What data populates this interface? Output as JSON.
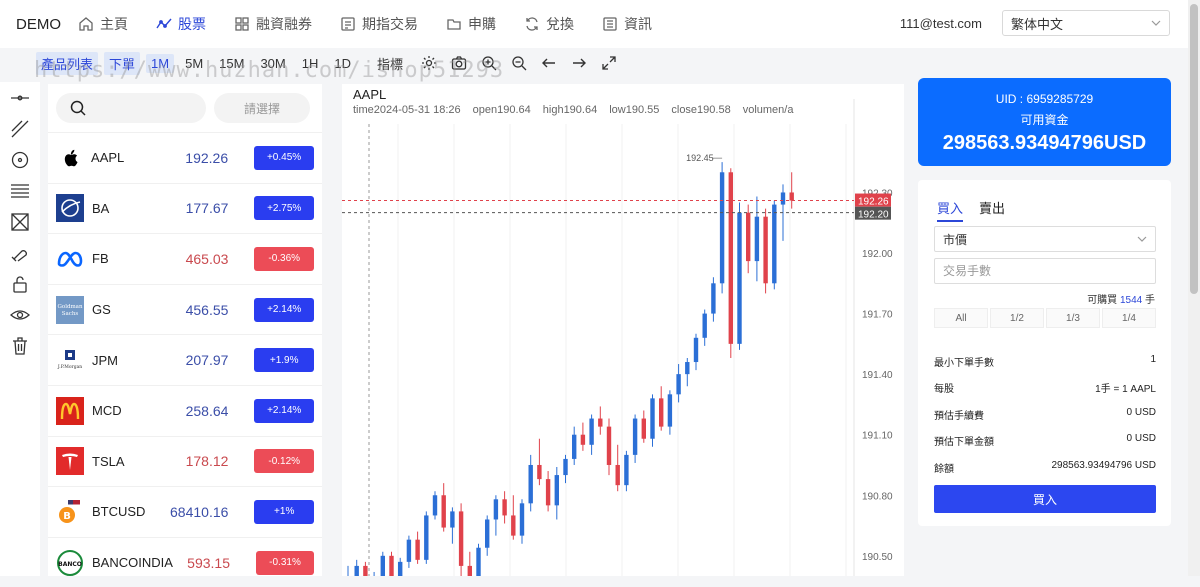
{
  "brand": "DEMO",
  "nav": [
    {
      "label": "主頁",
      "icon": "home-icon"
    },
    {
      "label": "股票",
      "icon": "chart-icon",
      "active": true
    },
    {
      "label": "融資融券",
      "icon": "grid-icon"
    },
    {
      "label": "期指交易",
      "icon": "document-icon"
    },
    {
      "label": "申購",
      "icon": "folder-icon"
    },
    {
      "label": "兌換",
      "icon": "refresh-icon"
    },
    {
      "label": "資訊",
      "icon": "news-icon"
    }
  ],
  "user": {
    "email": "111@test.com",
    "language": "繁体中文"
  },
  "toolbar": {
    "product_list": "產品列表",
    "order": "下單",
    "intervals": [
      "1M",
      "5M",
      "15M",
      "30M",
      "1H",
      "1D"
    ],
    "selected_interval": "1M",
    "indicators": "指標"
  },
  "watermark": "https://www.huzhan.com/ishop51293",
  "products_panel": {
    "search_placeholder": "",
    "select_label": "請選擇",
    "items": [
      {
        "symbol": "AAPL",
        "price": "192.26",
        "change": "+0.45%",
        "direction": "up",
        "logo": "apple-logo",
        "color": "#000000"
      },
      {
        "symbol": "BA",
        "price": "177.67",
        "change": "+2.75%",
        "direction": "up",
        "logo": "boeing-logo",
        "color": "#1d3f8f"
      },
      {
        "symbol": "FB",
        "price": "465.03",
        "change": "-0.36%",
        "direction": "down",
        "logo": "meta-logo",
        "color": "#0a66ff"
      },
      {
        "symbol": "GS",
        "price": "456.55",
        "change": "+2.14%",
        "direction": "up",
        "logo": "goldman-logo",
        "color": "#7399c6",
        "logo_text": "Goldman Sachs"
      },
      {
        "symbol": "JPM",
        "price": "207.97",
        "change": "+1.9%",
        "direction": "up",
        "logo": "jpmorgan-logo",
        "color": "#1b3a87",
        "logo_text": "J.P.Morgan"
      },
      {
        "symbol": "MCD",
        "price": "258.64",
        "change": "+2.14%",
        "direction": "up",
        "logo": "mcdonalds-logo",
        "color": "#d9231b"
      },
      {
        "symbol": "TSLA",
        "price": "178.12",
        "change": "-0.12%",
        "direction": "down",
        "logo": "tesla-logo",
        "color": "#e22b2b"
      },
      {
        "symbol": "BTCUSD",
        "price": "68410.16",
        "change": "+1%",
        "direction": "up",
        "logo": "bitcoin-logo",
        "color": "#f7931a"
      },
      {
        "symbol": "BANCOINDIA",
        "price": "593.15",
        "change": "-0.31%",
        "direction": "down",
        "logo": "bancoindia-logo",
        "color": "#1a8a3a",
        "logo_text": "BANCO"
      }
    ]
  },
  "chart": {
    "symbol": "AAPL",
    "info": {
      "time": "time2024-05-31 18:26",
      "open": "open190.64",
      "high": "high190.64",
      "low": "low190.55",
      "close": "close190.58",
      "volume": "volumen/a"
    },
    "price_axis": [
      "192.30",
      "192.00",
      "191.70",
      "191.40",
      "191.10",
      "190.80",
      "190.50"
    ],
    "last_price_tag": "192.26",
    "crosshair_price_tag": "192.20",
    "high_annotation": "192.45",
    "colors": {
      "up": "#2b6fd6",
      "down": "#e0424b"
    }
  },
  "chart_data": {
    "type": "candlestick",
    "ylim": [
      190.4,
      192.55
    ],
    "candles": [
      [
        190.35,
        190.45,
        190.33,
        190.4
      ],
      [
        190.4,
        190.48,
        190.38,
        190.45
      ],
      [
        190.45,
        190.47,
        190.3,
        190.33
      ],
      [
        190.33,
        190.42,
        190.3,
        190.4
      ],
      [
        190.4,
        190.52,
        190.38,
        190.5
      ],
      [
        190.5,
        190.52,
        190.36,
        190.38
      ],
      [
        190.38,
        190.49,
        190.35,
        190.47
      ],
      [
        190.47,
        190.6,
        190.44,
        190.58
      ],
      [
        190.58,
        190.62,
        190.46,
        190.48
      ],
      [
        190.48,
        190.72,
        190.46,
        190.7
      ],
      [
        190.7,
        190.82,
        190.68,
        190.8
      ],
      [
        190.8,
        190.86,
        190.62,
        190.64
      ],
      [
        190.64,
        190.74,
        190.56,
        190.72
      ],
      [
        190.72,
        190.76,
        190.4,
        190.45
      ],
      [
        190.45,
        190.52,
        190.34,
        190.36
      ],
      [
        190.36,
        190.56,
        190.32,
        190.54
      ],
      [
        190.54,
        190.7,
        190.5,
        190.68
      ],
      [
        190.68,
        190.8,
        190.6,
        190.78
      ],
      [
        190.78,
        190.82,
        190.66,
        190.7
      ],
      [
        190.7,
        190.8,
        190.58,
        190.6
      ],
      [
        190.6,
        190.78,
        190.56,
        190.76
      ],
      [
        190.76,
        191.0,
        190.72,
        190.95
      ],
      [
        190.95,
        191.08,
        190.85,
        190.88
      ],
      [
        190.88,
        190.92,
        190.72,
        190.75
      ],
      [
        190.75,
        190.94,
        190.68,
        190.9
      ],
      [
        190.9,
        191.0,
        190.86,
        190.98
      ],
      [
        190.98,
        191.14,
        190.95,
        191.1
      ],
      [
        191.1,
        191.16,
        191.02,
        191.05
      ],
      [
        191.05,
        191.2,
        191.0,
        191.18
      ],
      [
        191.18,
        191.24,
        191.1,
        191.14
      ],
      [
        191.14,
        191.18,
        190.9,
        190.95
      ],
      [
        190.95,
        191.05,
        190.82,
        190.85
      ],
      [
        190.85,
        191.02,
        190.82,
        191.0
      ],
      [
        191.0,
        191.2,
        190.96,
        191.18
      ],
      [
        191.18,
        191.22,
        191.06,
        191.08
      ],
      [
        191.08,
        191.3,
        191.04,
        191.28
      ],
      [
        191.28,
        191.34,
        191.12,
        191.14
      ],
      [
        191.14,
        191.32,
        191.1,
        191.3
      ],
      [
        191.3,
        191.45,
        191.26,
        191.4
      ],
      [
        191.4,
        191.48,
        191.34,
        191.46
      ],
      [
        191.46,
        191.6,
        191.42,
        191.58
      ],
      [
        191.58,
        191.72,
        191.54,
        191.7
      ],
      [
        191.7,
        191.88,
        191.66,
        191.85
      ],
      [
        191.85,
        192.45,
        191.8,
        192.4
      ],
      [
        192.4,
        192.42,
        191.48,
        191.55
      ],
      [
        191.55,
        192.25,
        191.52,
        192.2
      ],
      [
        192.2,
        192.24,
        191.9,
        191.96
      ],
      [
        191.96,
        192.28,
        191.86,
        192.18
      ],
      [
        192.18,
        192.22,
        191.8,
        191.85
      ],
      [
        191.85,
        192.26,
        191.82,
        192.24
      ],
      [
        192.24,
        192.34,
        192.06,
        192.3
      ],
      [
        192.3,
        192.4,
        192.22,
        192.26
      ]
    ]
  },
  "account": {
    "uid": "UID : 6959285729",
    "available_label": "可用資金",
    "available_value": "298563.93494796USD"
  },
  "trade": {
    "tab_buy": "買入",
    "tab_sell": "賣出",
    "order_type": "市價",
    "qty_placeholder": "交易手數",
    "max_buy_prefix": "可購買",
    "max_buy_value": "1544",
    "max_buy_unit": "手",
    "fractions": [
      "All",
      "1/2",
      "1/3",
      "1/4"
    ],
    "rows": [
      {
        "label": "最小下單手數",
        "value": "1"
      },
      {
        "label": "每股",
        "value": "1手 = 1 AAPL"
      },
      {
        "label": "預估手續費",
        "value": "0 USD"
      },
      {
        "label": "預估下單金額",
        "value": "0 USD"
      },
      {
        "label": "餘額",
        "value": "298563.93494796 USD"
      }
    ],
    "buy_button": "買入"
  }
}
